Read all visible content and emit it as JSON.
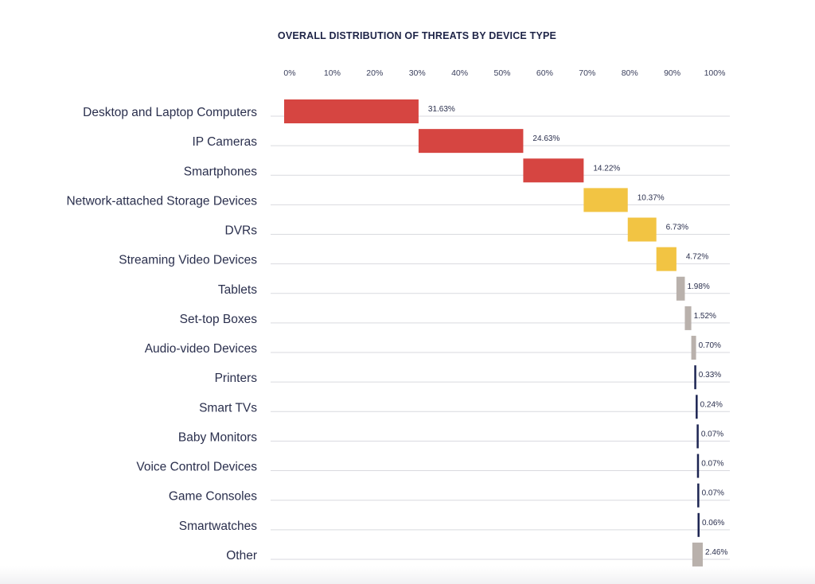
{
  "chart_data": {
    "type": "bar",
    "subtype": "waterfall",
    "title": "OVERALL DISTRIBUTION OF THREATS BY DEVICE TYPE",
    "xlabel": "",
    "ylabel": "",
    "xlim": [
      0,
      100
    ],
    "x_ticks": [
      "0%",
      "10%",
      "20%",
      "30%",
      "40%",
      "50%",
      "60%",
      "70%",
      "80%",
      "90%",
      "100%"
    ],
    "categories": [
      "Desktop and Laptop Computers",
      "IP Cameras",
      "Smartphones",
      "Network-attached Storage Devices",
      "DVRs",
      "Streaming Video Devices",
      "Tablets",
      "Set-top Boxes",
      "Audio-video Devices",
      "Printers",
      "Smart TVs",
      "Baby Monitors",
      "Voice Control Devices",
      "Game Consoles",
      "Smartwatches",
      "Other"
    ],
    "values": [
      31.63,
      24.63,
      14.22,
      10.37,
      6.73,
      4.72,
      1.98,
      1.52,
      0.7,
      0.33,
      0.24,
      0.07,
      0.07,
      0.07,
      0.06,
      2.46
    ],
    "labels": [
      "31.63%",
      "24.63%",
      "14.22%",
      "10.37%",
      "6.73%",
      "4.72%",
      "1.98%",
      "1.52%",
      "0.70%",
      "0.33%",
      "0.24%",
      "0.07%",
      "0.07%",
      "0.07%",
      "0.06%",
      "2.46%"
    ],
    "color_groups": [
      "red",
      "red",
      "red",
      "yellow",
      "yellow",
      "yellow",
      "gray",
      "gray",
      "gray",
      "navy",
      "navy",
      "navy",
      "navy",
      "navy",
      "navy",
      "gray"
    ],
    "colors": {
      "red": "#d64541",
      "yellow": "#f2c443",
      "gray": "#b9b1ac",
      "navy": "#1c2452"
    },
    "grid": true
  }
}
